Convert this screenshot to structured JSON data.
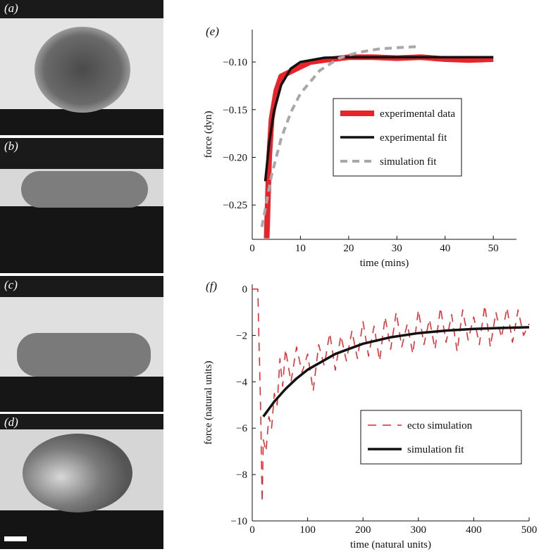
{
  "panels": [
    "(a)",
    "(b)",
    "(c)",
    "(d)"
  ],
  "chart_data": [
    {
      "type": "line",
      "label": "(e)",
      "xlabel": "time (mins)",
      "ylabel": "force (dyn)",
      "xlim": [
        0,
        54.8
      ],
      "xticks": [
        0,
        10,
        20,
        30,
        40,
        50
      ],
      "ylim": [
        -0.286,
        -0.066
      ],
      "yticks": [
        {
          "value": -0.25,
          "label": "−0.25"
        },
        {
          "value": -0.2,
          "label": "−0.20"
        },
        {
          "value": -0.15,
          "label": "−0.15"
        },
        {
          "value": -0.1,
          "label": "−0.10"
        }
      ],
      "legend": "center right",
      "series": [
        {
          "name": "experimental data",
          "color": "#e8242a",
          "style": "solid",
          "width": 8,
          "x": [
            3,
            3.5,
            4,
            5,
            6,
            8,
            10,
            12,
            15,
            20,
            25,
            30,
            35,
            40,
            45,
            50
          ],
          "values": [
            -0.285,
            -0.2,
            -0.16,
            -0.13,
            -0.115,
            -0.11,
            -0.105,
            -0.1,
            -0.098,
            -0.095,
            -0.095,
            -0.096,
            -0.095,
            -0.097,
            -0.098,
            -0.097
          ]
        },
        {
          "name": "experimental fit",
          "color": "#111111",
          "style": "solid",
          "width": 3.5,
          "x": [
            2.7,
            3.5,
            4.5,
            6,
            8,
            10,
            15,
            20,
            30,
            40,
            50
          ],
          "values": [
            -0.225,
            -0.185,
            -0.152,
            -0.124,
            -0.107,
            -0.1,
            -0.0955,
            -0.095,
            -0.095,
            -0.095,
            -0.095
          ]
        },
        {
          "name": "simulation fit",
          "color": "#a8a8a8",
          "style": "dashed",
          "width": 4,
          "x": [
            2,
            4,
            6,
            8,
            10,
            14,
            18,
            22,
            26,
            30,
            34
          ],
          "values": [
            -0.273,
            -0.219,
            -0.18,
            -0.153,
            -0.133,
            -0.109,
            -0.096,
            -0.09,
            -0.0865,
            -0.085,
            -0.084
          ]
        }
      ]
    },
    {
      "type": "line",
      "label": "(f)",
      "xlabel": "time (natural units)",
      "ylabel": "force (natural units)",
      "xlim": [
        0,
        500
      ],
      "xticks": [
        0,
        100,
        200,
        300,
        400,
        500
      ],
      "ylim": [
        -10,
        0.2
      ],
      "yticks": [
        {
          "value": -10,
          "label": "−10"
        },
        {
          "value": -8,
          "label": "−8"
        },
        {
          "value": -6,
          "label": "−6"
        },
        {
          "value": -4,
          "label": "−4"
        },
        {
          "value": -2,
          "label": "−2"
        },
        0
      ],
      "legend": "lower right",
      "series": [
        {
          "name": "ecto simulation",
          "color": "#e8242a",
          "style": "dashed",
          "width": 1.5,
          "x": [
            0,
            10,
            12,
            15,
            18,
            20,
            25,
            30,
            35,
            40,
            45,
            50,
            55,
            60,
            70,
            80,
            90,
            100,
            110,
            120,
            130,
            140,
            150,
            160,
            170,
            180,
            190,
            200,
            210,
            220,
            230,
            240,
            250,
            260,
            270,
            280,
            290,
            300,
            310,
            320,
            330,
            340,
            350,
            360,
            370,
            380,
            390,
            400,
            410,
            420,
            430,
            440,
            450,
            460,
            470,
            480,
            490,
            500
          ],
          "values": [
            0,
            0,
            -2,
            -5,
            -9.2,
            -6.5,
            -7,
            -5.5,
            -6,
            -4.5,
            -5,
            -3,
            -4.2,
            -2.6,
            -4.0,
            -2.5,
            -3.6,
            -2.8,
            -4.4,
            -2.4,
            -3.3,
            -1.9,
            -3.5,
            -2.0,
            -3.1,
            -1.8,
            -3.0,
            -1.4,
            -2.9,
            -1.6,
            -3.1,
            -1.2,
            -2.6,
            -1.0,
            -2.5,
            -1.5,
            -2.8,
            -0.9,
            -2.4,
            -1.3,
            -2.6,
            -0.8,
            -2.3,
            -1.1,
            -2.7,
            -0.9,
            -2.2,
            -1.2,
            -2.4,
            -0.7,
            -2.5,
            -1.0,
            -2.1,
            -0.8,
            -2.3,
            -0.9,
            -2.0,
            -1.5
          ]
        },
        {
          "name": "simulation fit",
          "color": "#111111",
          "style": "solid",
          "width": 3.5,
          "x": [
            20,
            40,
            60,
            80,
            100,
            150,
            200,
            250,
            300,
            350,
            400,
            450,
            500
          ],
          "values": [
            -5.5,
            -4.85,
            -4.31,
            -3.86,
            -3.48,
            -2.8,
            -2.36,
            -2.08,
            -1.9,
            -1.79,
            -1.72,
            -1.68,
            -1.65
          ]
        }
      ]
    }
  ]
}
